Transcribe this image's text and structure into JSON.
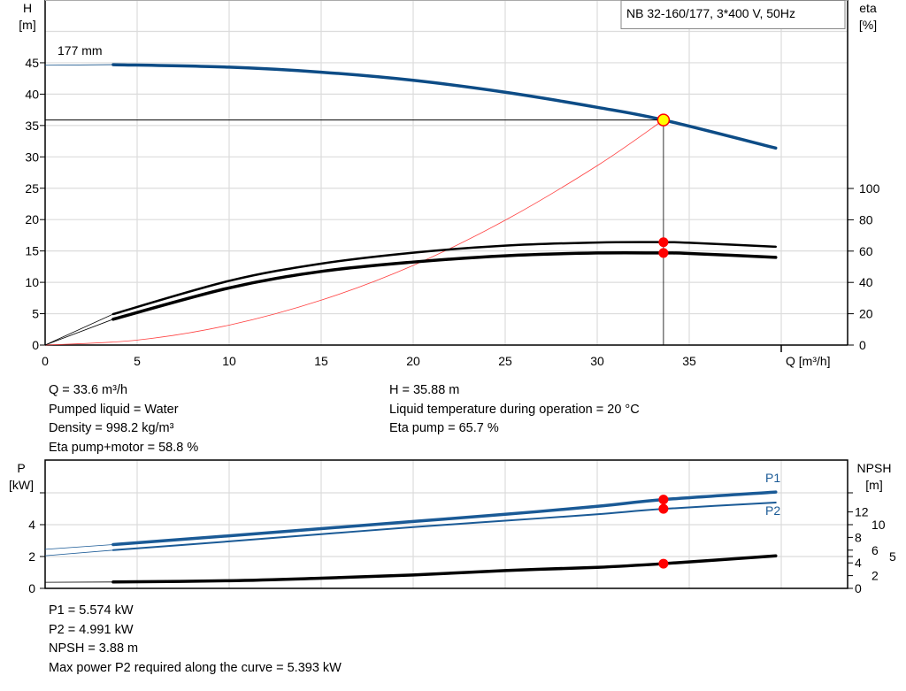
{
  "colors": {
    "head_curve": "#0d4c86",
    "power_curve": "#1a5a96",
    "system_curve": "#ff4040",
    "operating_point": "#ffff00",
    "marker": "#ff0000",
    "efficiency_curve": "#000000",
    "npsh_curve": "#000000"
  },
  "legend_box": "NB 32-160/177, 3*400 V, 50Hz",
  "impeller_label": "177 mm",
  "info_top": {
    "left": [
      "Q = 33.6 m³/h",
      "Pumped liquid = Water",
      "Density = 998.2 kg/m³",
      "Eta pump+motor = 58.8 %"
    ],
    "right": [
      "H = 35.88 m",
      "Liquid temperature during operation = 20 °C",
      "Eta pump = 65.7 %"
    ]
  },
  "info_bottom": [
    "P1 = 5.574 kW",
    "P2 = 4.991 kW",
    "NPSH = 3.88 m",
    "Max power P2 required along the curve = 5.393 kW"
  ],
  "chart_data": [
    {
      "type": "line",
      "title": "",
      "xlabel": "Q [m³/h]",
      "ylabel_left": "H",
      "ylabel_left_unit": "[m]",
      "ylabel_right": "eta",
      "ylabel_right_unit": "[%]",
      "xlim": [
        0,
        44.5
      ],
      "ylim_left": [
        0,
        50
      ],
      "ylim_right": [
        0,
        141
      ],
      "x_ticks": [
        "0",
        "5",
        "10",
        "15",
        "20",
        "25",
        "30",
        "35"
      ],
      "y_ticks_left": [
        "0",
        "5",
        "10",
        "15",
        "20",
        "25",
        "30",
        "35",
        "40",
        "45"
      ],
      "y_ticks_right": [
        "0",
        "20",
        "40",
        "60",
        "80",
        "100"
      ],
      "grid": true,
      "series": [
        {
          "axis": "left",
          "role": "head",
          "x": [
            0,
            3.7,
            10,
            15,
            20,
            25,
            30,
            33.6,
            39.7
          ],
          "y": [
            44.6,
            44.7,
            44.3,
            43.5,
            42.2,
            40.3,
            37.9,
            35.88,
            31.4
          ]
        },
        {
          "axis": "right",
          "role": "eta-pump",
          "x": [
            0,
            3.7,
            10,
            15,
            20,
            25,
            30,
            33.6,
            35,
            39.7
          ],
          "y": [
            0,
            19.8,
            41,
            52,
            59,
            63.5,
            65.5,
            65.7,
            65.3,
            62.8
          ]
        },
        {
          "axis": "right",
          "role": "eta-pump-motor",
          "x": [
            0,
            3.7,
            10,
            15,
            20,
            25,
            30,
            33.6,
            35,
            39.7
          ],
          "y": [
            0,
            16.5,
            36.5,
            47,
            53,
            57,
            58.8,
            58.8,
            58.5,
            56
          ]
        },
        {
          "axis": "left",
          "role": "system-curve",
          "x": [
            0,
            5,
            10,
            15,
            20,
            25,
            30,
            33.6
          ],
          "y": [
            0,
            0.79,
            3.18,
            7.15,
            12.7,
            19.9,
            28.6,
            35.88
          ]
        }
      ],
      "operating_point": {
        "q": 33.6,
        "h": 35.88,
        "eta_pump": 65.7,
        "eta_pump_motor": 58.8
      }
    },
    {
      "type": "line",
      "title": "",
      "ylabel_left": "P",
      "ylabel_left_unit": "[kW]",
      "ylabel_right": "NPSH",
      "ylabel_right_unit": "[m]",
      "xlim": [
        0,
        44.5
      ],
      "ylim_left": [
        0,
        8
      ],
      "ylim_right": [
        0,
        20
      ],
      "y_ticks_left": [
        "0",
        "2",
        "4"
      ],
      "y_ticks_right": [
        "0",
        "2",
        "4",
        "5",
        "6",
        "8",
        "10",
        "12"
      ],
      "grid": true,
      "series": [
        {
          "name": "P1",
          "axis": "left",
          "x": [
            0,
            3.7,
            10,
            15,
            20,
            25,
            30,
            33.6,
            39.7
          ],
          "y": [
            2.45,
            2.75,
            3.3,
            3.75,
            4.2,
            4.65,
            5.15,
            5.574,
            6.05
          ]
        },
        {
          "name": "P2",
          "axis": "left",
          "x": [
            0,
            3.7,
            10,
            15,
            20,
            25,
            30,
            33.6,
            39.7
          ],
          "y": [
            2.05,
            2.4,
            2.95,
            3.4,
            3.85,
            4.25,
            4.65,
            4.991,
            5.39
          ]
        },
        {
          "axis": "right",
          "role": "npsh",
          "x": [
            0,
            3.7,
            10,
            15,
            20,
            25,
            30,
            33.6,
            39.7
          ],
          "y": [
            0.95,
            1.0,
            1.2,
            1.6,
            2.1,
            2.8,
            3.3,
            3.88,
            5.1
          ]
        }
      ],
      "operating_point": {
        "q": 33.6,
        "p1": 5.574,
        "p2": 4.991,
        "npsh": 3.88
      }
    }
  ]
}
